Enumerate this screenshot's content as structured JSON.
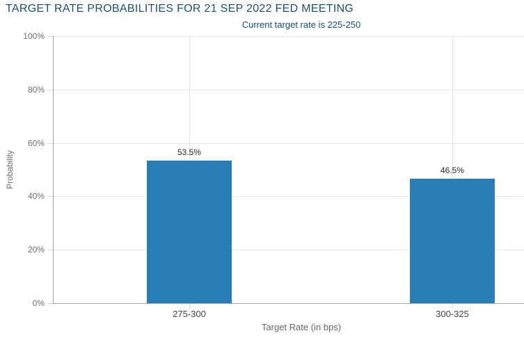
{
  "chart_data": {
    "type": "bar",
    "title": "TARGET RATE PROBABILITIES FOR 21 SEP 2022 FED MEETING",
    "subtitle": "Current target rate is 225-250",
    "categories": [
      "275-300",
      "300-325"
    ],
    "values": [
      53.5,
      46.5
    ],
    "value_labels": [
      "53.5%",
      "46.5%"
    ],
    "xlabel": "Target Rate (in bps)",
    "ylabel": "Probability",
    "ylim": [
      0,
      100
    ],
    "yticks": [
      0,
      20,
      40,
      60,
      80,
      100
    ],
    "ytick_labels": [
      "0%",
      "20%",
      "40%",
      "60%",
      "80%",
      "100%"
    ],
    "grid": true,
    "legend": "none",
    "colors": {
      "bar": "#2a7eb8",
      "title_text": "#1d4e73",
      "axis_line": "#a3a3a3",
      "gridline": "#e4e4e4",
      "tick_label": "#707070",
      "category_label": "#454545",
      "data_label": "#2b2b2b"
    }
  }
}
